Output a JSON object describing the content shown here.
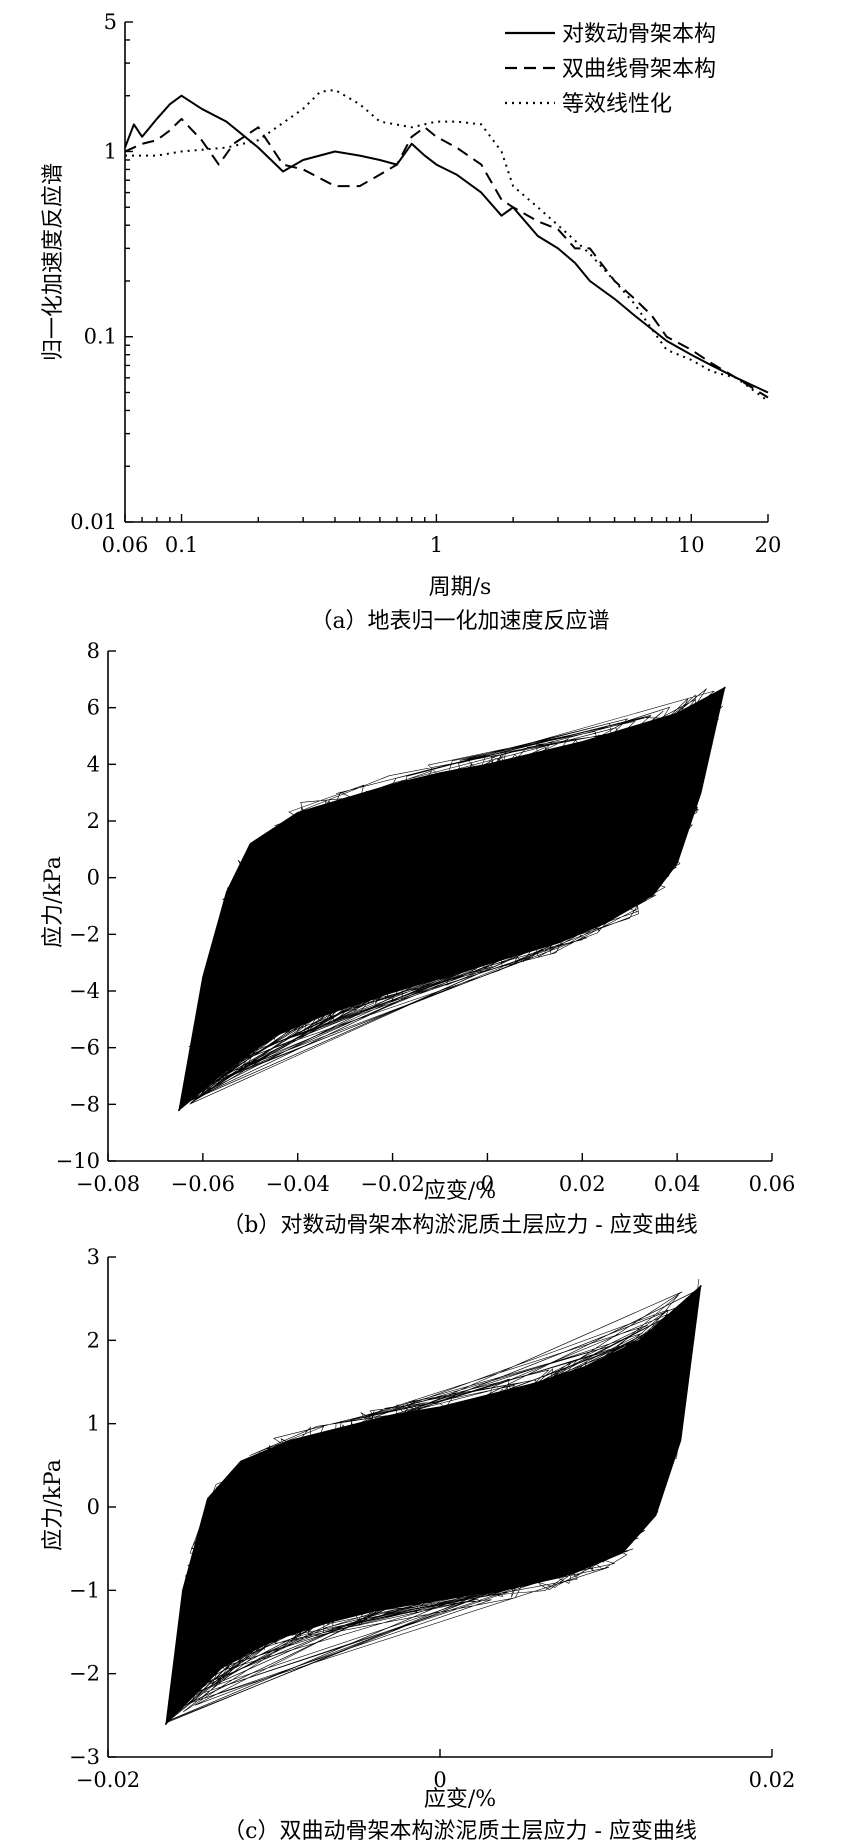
{
  "chart_data": [
    {
      "type": "line",
      "caption": "（a）地表归一化加速度反应谱",
      "xlabel": "周期/s",
      "ylabel": "归一化加速度反应谱",
      "xscale": "log",
      "yscale": "log",
      "xlim": [
        0.06,
        20
      ],
      "ylim": [
        0.01,
        5
      ],
      "xticks": [
        0.06,
        0.1,
        1,
        10,
        20
      ],
      "xtick_labels": [
        "0.06",
        "0.1",
        "1",
        "10",
        "20"
      ],
      "yticks": [
        0.01,
        0.1,
        1,
        5
      ],
      "ytick_labels": [
        "0.01",
        "0.1",
        "1",
        "5"
      ],
      "legend_position": "top-right",
      "series": [
        {
          "name": "对数动骨架本构",
          "style": "solid",
          "x": [
            0.06,
            0.065,
            0.07,
            0.08,
            0.09,
            0.1,
            0.12,
            0.15,
            0.2,
            0.25,
            0.3,
            0.4,
            0.5,
            0.6,
            0.7,
            0.8,
            0.9,
            1.0,
            1.2,
            1.5,
            1.8,
            2.0,
            2.5,
            3.0,
            3.5,
            4.0,
            5.0,
            6.0,
            7.0,
            8.0,
            10.0,
            12.0,
            15.0,
            20.0
          ],
          "values": [
            1.05,
            1.4,
            1.2,
            1.5,
            1.8,
            2.0,
            1.7,
            1.45,
            1.05,
            0.78,
            0.9,
            1.0,
            0.95,
            0.9,
            0.85,
            1.1,
            0.95,
            0.85,
            0.75,
            0.6,
            0.45,
            0.5,
            0.35,
            0.3,
            0.25,
            0.2,
            0.16,
            0.13,
            0.11,
            0.095,
            0.08,
            0.07,
            0.06,
            0.05
          ]
        },
        {
          "name": "双曲线骨架本构",
          "style": "dashed",
          "x": [
            0.06,
            0.07,
            0.08,
            0.09,
            0.1,
            0.12,
            0.14,
            0.16,
            0.2,
            0.25,
            0.3,
            0.4,
            0.5,
            0.6,
            0.7,
            0.8,
            0.9,
            1.0,
            1.2,
            1.5,
            1.8,
            2.0,
            2.5,
            3.0,
            3.5,
            4.0,
            5.0,
            6.0,
            7.0,
            8.0,
            10.0,
            12.0,
            15.0,
            20.0
          ],
          "values": [
            1.0,
            1.1,
            1.15,
            1.3,
            1.5,
            1.15,
            0.85,
            1.1,
            1.35,
            0.85,
            0.8,
            0.65,
            0.65,
            0.75,
            0.85,
            1.2,
            1.35,
            1.2,
            1.05,
            0.85,
            0.55,
            0.5,
            0.42,
            0.38,
            0.3,
            0.3,
            0.2,
            0.16,
            0.13,
            0.1,
            0.085,
            0.072,
            0.06,
            0.047
          ]
        },
        {
          "name": "等效线性化",
          "style": "dotted",
          "x": [
            0.06,
            0.08,
            0.1,
            0.15,
            0.2,
            0.3,
            0.35,
            0.4,
            0.5,
            0.6,
            0.8,
            1.0,
            1.2,
            1.5,
            1.8,
            2.0,
            2.5,
            3.0,
            4.0,
            5.0,
            6.0,
            7.0,
            8.0,
            10.0,
            12.0,
            15.0,
            20.0
          ],
          "values": [
            0.95,
            0.95,
            1.0,
            1.05,
            1.15,
            1.7,
            2.1,
            2.15,
            1.8,
            1.45,
            1.35,
            1.45,
            1.45,
            1.4,
            1.0,
            0.65,
            0.5,
            0.4,
            0.28,
            0.2,
            0.15,
            0.11,
            0.085,
            0.075,
            0.065,
            0.06,
            0.045
          ]
        }
      ]
    },
    {
      "type": "line",
      "caption": "（b）对数动骨架本构淤泥质土层应力 - 应变曲线",
      "xlabel": "应变/%",
      "ylabel": "应力/kPa",
      "xlim": [
        -0.08,
        0.06
      ],
      "ylim": [
        -10,
        8
      ],
      "xticks": [
        -0.08,
        -0.06,
        -0.04,
        -0.02,
        0,
        0.02,
        0.04,
        0.06
      ],
      "xtick_labels": [
        "−0.08",
        "−0.06",
        "−0.04",
        "−0.02",
        "0",
        "0.02",
        "0.04",
        "0.06"
      ],
      "yticks": [
        -10,
        -8,
        -6,
        -4,
        -2,
        0,
        2,
        4,
        6,
        8
      ],
      "ytick_labels": [
        "−10",
        "−8",
        "−6",
        "−4",
        "−2",
        "0",
        "2",
        "4",
        "6",
        "8"
      ],
      "loop": {
        "strain_min": -0.065,
        "strain_max": 0.05,
        "stress_min": -8.2,
        "stress_max": 6.7,
        "upper_branch": [
          [
            -0.065,
            -8.2
          ],
          [
            -0.06,
            -3.5
          ],
          [
            -0.055,
            -0.5
          ],
          [
            -0.05,
            1.2
          ],
          [
            -0.04,
            2.3
          ],
          [
            -0.03,
            2.8
          ],
          [
            -0.02,
            3.3
          ],
          [
            -0.01,
            3.7
          ],
          [
            0.0,
            4.0
          ],
          [
            0.01,
            4.4
          ],
          [
            0.02,
            4.8
          ],
          [
            0.03,
            5.3
          ],
          [
            0.04,
            5.8
          ],
          [
            0.05,
            6.7
          ]
        ],
        "lower_branch": [
          [
            0.05,
            6.7
          ],
          [
            0.045,
            3.0
          ],
          [
            0.04,
            0.5
          ],
          [
            0.035,
            -0.6
          ],
          [
            0.025,
            -1.6
          ],
          [
            0.015,
            -2.3
          ],
          [
            0.005,
            -2.8
          ],
          [
            -0.005,
            -3.3
          ],
          [
            -0.015,
            -3.8
          ],
          [
            -0.025,
            -4.3
          ],
          [
            -0.035,
            -4.9
          ],
          [
            -0.045,
            -5.6
          ],
          [
            -0.055,
            -6.8
          ],
          [
            -0.065,
            -8.2
          ]
        ]
      }
    },
    {
      "type": "line",
      "caption": "（c）双曲动骨架本构淤泥质土层应力 - 应变曲线",
      "xlabel": "应变/%",
      "ylabel": "应力/kPa",
      "xlim": [
        -0.02,
        0.02
      ],
      "ylim": [
        -3,
        3
      ],
      "xticks": [
        -0.02,
        0,
        0.02
      ],
      "xtick_labels": [
        "−0.02",
        "0",
        "0.02"
      ],
      "yticks": [
        -3,
        -2,
        -1,
        0,
        1,
        2,
        3
      ],
      "ytick_labels": [
        "−3",
        "−2",
        "−1",
        "0",
        "1",
        "2",
        "3"
      ],
      "loop": {
        "strain_min": -0.0165,
        "strain_max": 0.0157,
        "stress_min": -2.6,
        "stress_max": 2.65,
        "upper_branch": [
          [
            -0.0165,
            -2.6
          ],
          [
            -0.0155,
            -1.0
          ],
          [
            -0.014,
            0.1
          ],
          [
            -0.012,
            0.55
          ],
          [
            -0.009,
            0.8
          ],
          [
            -0.006,
            0.95
          ],
          [
            -0.003,
            1.1
          ],
          [
            0.0,
            1.2
          ],
          [
            0.003,
            1.35
          ],
          [
            0.006,
            1.5
          ],
          [
            0.009,
            1.7
          ],
          [
            0.012,
            2.0
          ],
          [
            0.0157,
            2.65
          ]
        ],
        "lower_branch": [
          [
            0.0157,
            2.65
          ],
          [
            0.0145,
            0.8
          ],
          [
            0.013,
            -0.1
          ],
          [
            0.011,
            -0.55
          ],
          [
            0.008,
            -0.8
          ],
          [
            0.005,
            -0.95
          ],
          [
            0.002,
            -1.05
          ],
          [
            -0.001,
            -1.15
          ],
          [
            -0.004,
            -1.25
          ],
          [
            -0.007,
            -1.4
          ],
          [
            -0.01,
            -1.6
          ],
          [
            -0.013,
            -1.9
          ],
          [
            -0.0165,
            -2.6
          ]
        ]
      }
    }
  ]
}
